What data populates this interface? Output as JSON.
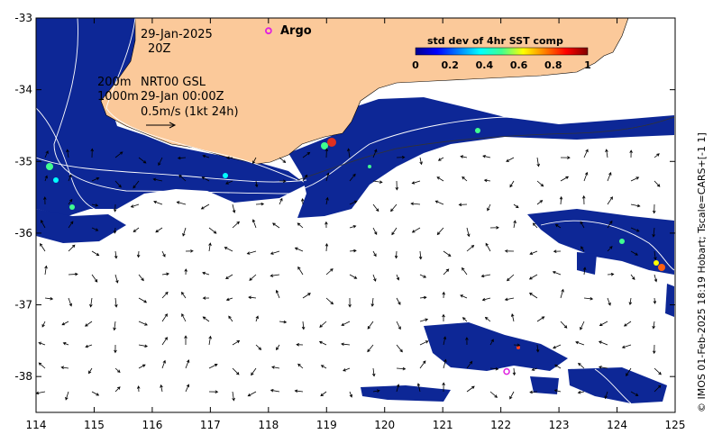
{
  "map": {
    "date_line": "29-Jan-2025",
    "time_line": "20Z",
    "argo_label": "Argo",
    "colorbar": {
      "title": "std dev of 4hr SST comp",
      "ticks": [
        "0",
        "0.2",
        "0.4",
        "0.6",
        "0.8",
        "1"
      ]
    },
    "contour_info": {
      "line1_depth": "200m",
      "line1_text": "NRT00 GSL",
      "line2_depth": "1000m",
      "line2_text": "29-Jan 00:00Z",
      "scale_text": "0.5m/s (1kt 24h)"
    },
    "credit": "© IMOS 01-Feb-2025 18:19 Hobart; Tscale=CARS+[-1 1]",
    "x_ticks": [
      "114",
      "115",
      "116",
      "117",
      "118",
      "119",
      "120",
      "121",
      "122",
      "123",
      "124",
      "125"
    ],
    "y_ticks": [
      "-33",
      "-34",
      "-35",
      "-36",
      "-37",
      "-38"
    ],
    "argo_floats": [
      {
        "lon": 118.0,
        "lat": -33.18
      },
      {
        "lon": 122.1,
        "lat": -37.93
      }
    ],
    "colors": {
      "land": "#fbc99a",
      "sst_main": "#0d2796",
      "argo_marker": "#e020e0"
    }
  }
}
